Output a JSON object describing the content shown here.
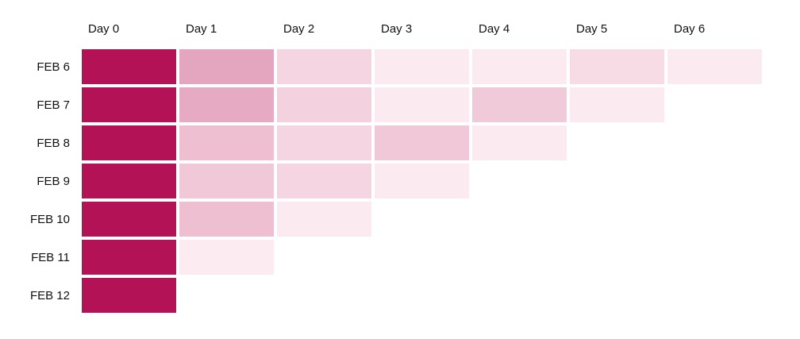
{
  "chart_data": {
    "type": "heatmap",
    "title": "",
    "xlabel": "",
    "ylabel": "",
    "x": [
      "Day 0",
      "Day 1",
      "Day 2",
      "Day 3",
      "Day 4",
      "Day 5",
      "Day 6"
    ],
    "y": [
      "FEB 6",
      "FEB 7",
      "FEB 8",
      "FEB 9",
      "FEB 10",
      "FEB 11",
      "FEB 12"
    ],
    "values": [
      [
        100,
        35,
        14,
        5,
        5,
        11,
        5
      ],
      [
        100,
        33,
        16,
        5,
        19,
        5,
        null
      ],
      [
        100,
        24,
        14,
        20,
        5,
        null,
        null
      ],
      [
        100,
        20,
        14,
        5,
        null,
        null,
        null
      ],
      [
        100,
        24,
        5,
        null,
        null,
        null,
        null
      ],
      [
        100,
        4,
        null,
        null,
        null,
        null,
        null
      ],
      [
        100,
        null,
        null,
        null,
        null,
        null,
        null
      ]
    ],
    "color_range": [
      "#fff5f8",
      "#b31356"
    ],
    "value_range": [
      0,
      100
    ],
    "legend": "none",
    "grid": false
  }
}
